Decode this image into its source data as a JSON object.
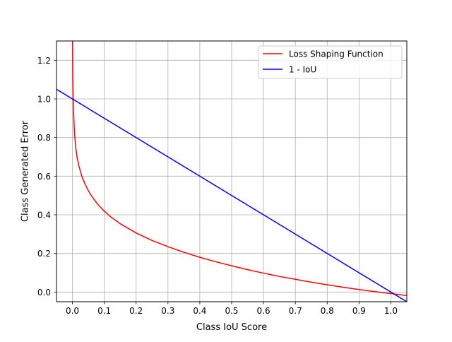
{
  "chart_data": {
    "type": "line",
    "title": "",
    "xlabel": "Class IoU Score",
    "ylabel": "Class Generated Error",
    "xlim": [
      -0.05,
      1.05
    ],
    "ylim": [
      -0.05,
      1.3
    ],
    "x_ticks": [
      0.0,
      0.1,
      0.2,
      0.3,
      0.4,
      0.5,
      0.6,
      0.7,
      0.8,
      0.9,
      1.0
    ],
    "x_tick_labels": [
      "0.0",
      "0.1",
      "0.2",
      "0.3",
      "0.4",
      "0.5",
      "0.6",
      "0.7",
      "0.8",
      "0.9",
      "1.0"
    ],
    "y_ticks": [
      0.0,
      0.2,
      0.4,
      0.6,
      0.8,
      1.0,
      1.2
    ],
    "y_tick_labels": [
      "0.0",
      "0.2",
      "0.4",
      "0.6",
      "0.8",
      "1.0",
      "1.2"
    ],
    "grid": true,
    "legend_position": "upper-right",
    "series": [
      {
        "name": "Loss Shaping Function",
        "color": "#ff0000",
        "x": [
          0.0003,
          0.0005,
          0.0008,
          0.001,
          0.0015,
          0.002,
          0.003,
          0.004,
          0.005,
          0.007,
          0.01,
          0.015,
          0.02,
          0.03,
          0.04,
          0.05,
          0.06,
          0.07,
          0.08,
          0.09,
          0.1,
          0.12,
          0.15,
          0.2,
          0.25,
          0.3,
          0.35,
          0.4,
          0.45,
          0.5,
          0.55,
          0.6,
          0.65,
          0.7,
          0.75,
          0.8,
          0.85,
          0.9,
          0.95,
          1.0,
          1.05
        ],
        "y": [
          1.52,
          1.31,
          1.2,
          1.15,
          1.089,
          1.04,
          0.966,
          0.913,
          0.874,
          0.815,
          0.754,
          0.695,
          0.655,
          0.598,
          0.558,
          0.525,
          0.498,
          0.475,
          0.454,
          0.436,
          0.419,
          0.39,
          0.354,
          0.306,
          0.267,
          0.235,
          0.206,
          0.18,
          0.157,
          0.136,
          0.116,
          0.098,
          0.081,
          0.066,
          0.051,
          0.038,
          0.025,
          0.013,
          0.002,
          -0.008,
          -0.018
        ]
      },
      {
        "name": "1 - IoU",
        "color": "#0000ff",
        "x": [
          -0.05,
          1.05
        ],
        "y": [
          1.05,
          -0.05
        ]
      }
    ]
  }
}
